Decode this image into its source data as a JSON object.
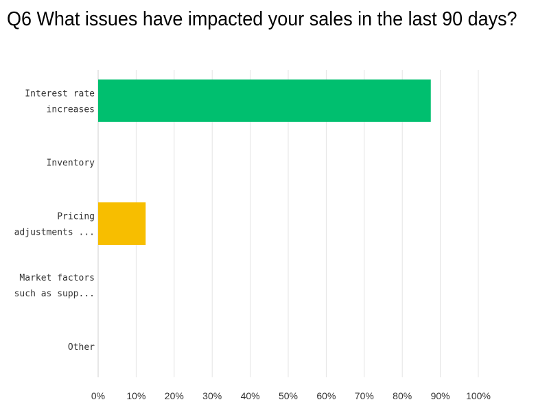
{
  "title": "Q6 What issues have impacted your sales in the last 90 days?",
  "chart_data": {
    "type": "bar",
    "orientation": "horizontal",
    "categories": [
      [
        "Interest rate",
        "increases"
      ],
      [
        "Inventory"
      ],
      [
        "Pricing",
        "adjustments ..."
      ],
      [
        "Market factors",
        "such as supp..."
      ],
      [
        "Other"
      ]
    ],
    "values": [
      87.5,
      0,
      12.5,
      0,
      0
    ],
    "colors": [
      "#00bf6f",
      "#00bf6f",
      "#f7be00",
      "#00bf6f",
      "#00bf6f"
    ],
    "xlim": [
      0,
      100
    ],
    "xticks": [
      0,
      10,
      20,
      30,
      40,
      50,
      60,
      70,
      80,
      90,
      100
    ],
    "tick_labels": [
      "0%",
      "10%",
      "20%",
      "30%",
      "40%",
      "50%",
      "60%",
      "70%",
      "80%",
      "90%",
      "100%"
    ],
    "grid": true,
    "legend": "none"
  }
}
